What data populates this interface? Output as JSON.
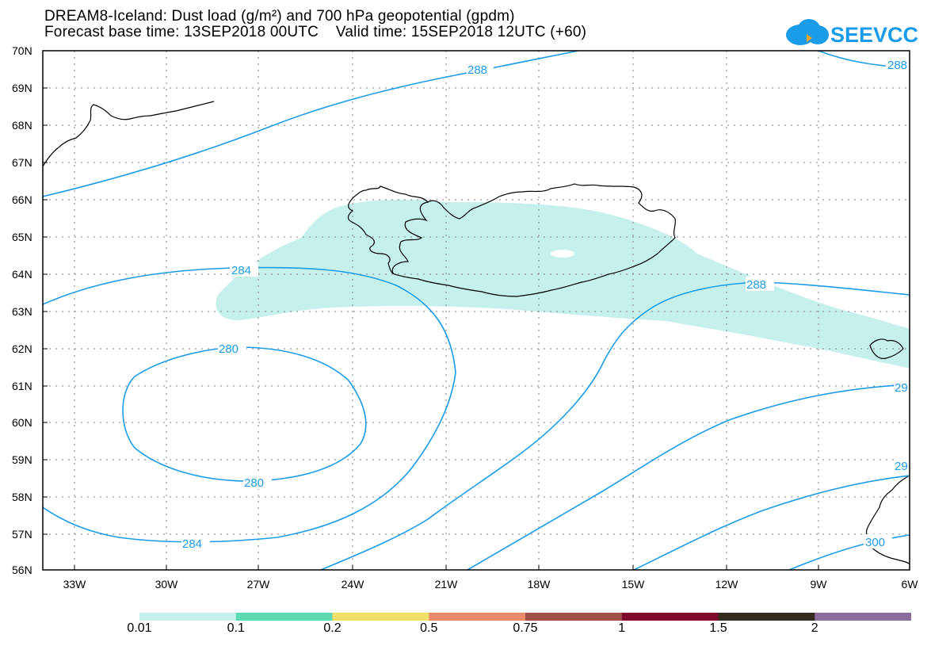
{
  "header": {
    "title_line1": "DREAM8-Iceland: Dust load (g/m²) and 700 hPa geopotential (gpdm)",
    "title_line2": "Forecast base time: 13SEP2018 00UTC    Valid time: 15SEP2018 12UTC (+60)"
  },
  "logo": {
    "text": "SEEVCCC",
    "color": "#1a9ce8",
    "icon": "cloud-icon"
  },
  "map": {
    "lat_labels": [
      "70N",
      "69N",
      "68N",
      "67N",
      "66N",
      "65N",
      "64N",
      "63N",
      "62N",
      "61N",
      "60N",
      "59N",
      "58N",
      "57N",
      "56N"
    ],
    "lon_labels": [
      "33W",
      "30W",
      "27W",
      "24W",
      "21W",
      "18W",
      "15W",
      "12W",
      "9W",
      "6W"
    ],
    "contour_color": "#1a9ce8",
    "dust_fill_color": "#c6f0ec",
    "contour_labels": [
      "288",
      "288",
      "284",
      "288",
      "280",
      "280",
      "29",
      "29",
      "284",
      "300"
    ]
  },
  "colorbar": {
    "colors": [
      "#c6f0ec",
      "#5ed9b3",
      "#f0e06a",
      "#e98b6b",
      "#a0524a",
      "#7d0a2d",
      "#352a1e",
      "#8b6e9e"
    ],
    "labels": [
      "0.01",
      "0.1",
      "0.2",
      "0.5",
      "0.75",
      "1",
      "1.5",
      "2"
    ]
  }
}
